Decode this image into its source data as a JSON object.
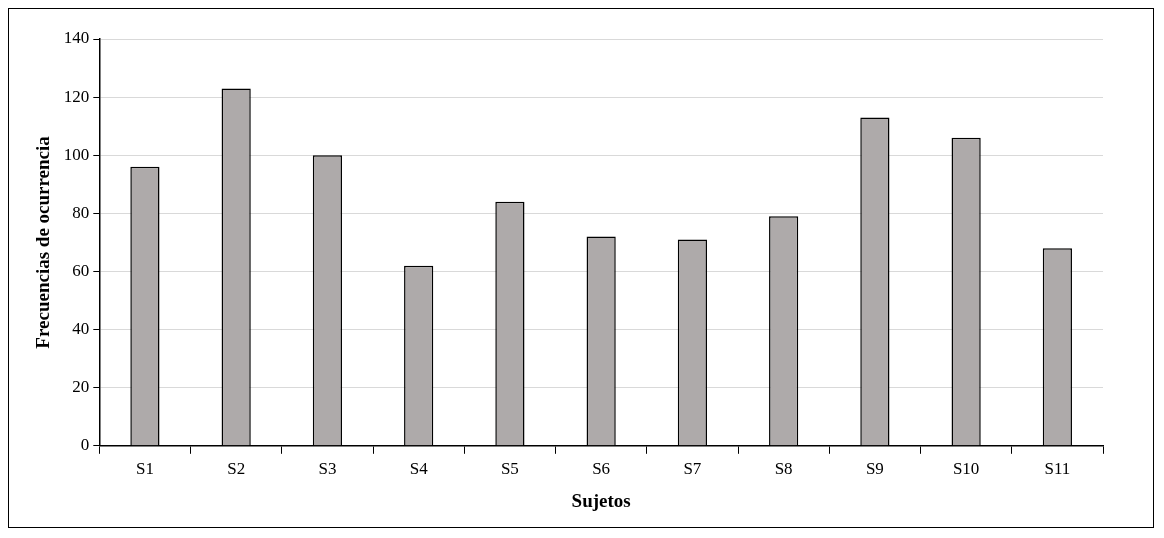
{
  "chart_data": {
    "type": "bar",
    "xlabel": "Sujetos",
    "ylabel": "Frecuencias de ocurrencia",
    "categories": [
      "S1",
      "S2",
      "S3",
      "S4",
      "S5",
      "S6",
      "S7",
      "S8",
      "S9",
      "S10",
      "S11"
    ],
    "values": [
      96,
      123,
      100,
      62,
      84,
      72,
      71,
      79,
      113,
      106,
      68
    ],
    "color": "#aeaaaa",
    "ylim": [
      0,
      140
    ],
    "yticks": [
      0,
      20,
      40,
      60,
      80,
      100,
      120,
      140
    ],
    "grid": "y"
  }
}
